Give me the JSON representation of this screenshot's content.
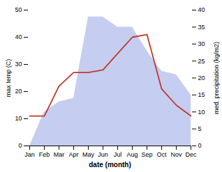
{
  "chart_data": {
    "type": "line",
    "xlabel": "date (month)",
    "ylabel": "max temp (C)",
    "y2label": "med. precipitation (kg/m2)",
    "categories": [
      "Jan",
      "Feb",
      "Mar",
      "Apr",
      "May",
      "Jun",
      "Jul",
      "Aug",
      "Sep",
      "Oct",
      "Nov",
      "Dec"
    ],
    "series": [
      {
        "name": "med. precipitation (kg/m2)",
        "type": "area",
        "axis": "y2",
        "color": "#c5cdf0",
        "values": [
          0,
          10,
          13,
          14,
          38,
          38,
          35,
          35,
          28,
          22,
          21,
          15
        ]
      },
      {
        "name": "max temp (C)",
        "type": "line",
        "color": "#c0392b",
        "values": [
          11,
          11,
          22,
          27,
          27,
          28,
          34,
          40,
          41,
          21,
          15,
          11
        ]
      }
    ],
    "ylim": [
      0,
      50
    ],
    "yticks": [
      0,
      10,
      20,
      30,
      40,
      50
    ],
    "y2lim": [
      0,
      40
    ],
    "y2ticks": [
      0,
      5,
      10,
      15,
      20,
      25,
      30,
      35,
      40
    ]
  }
}
